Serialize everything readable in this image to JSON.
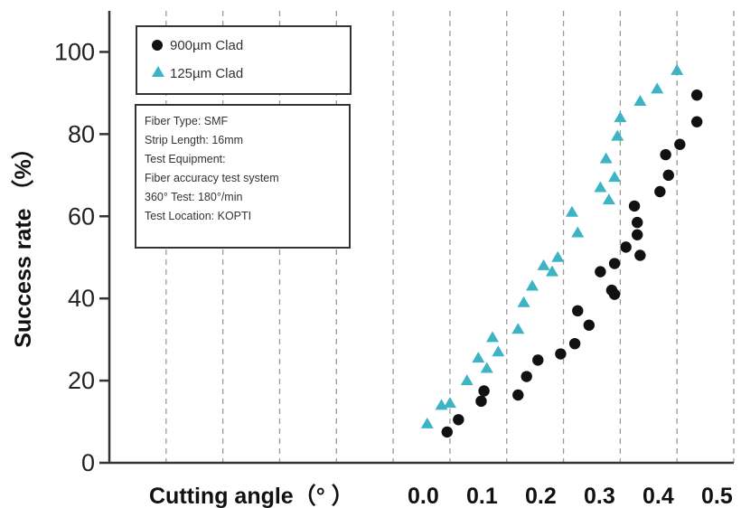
{
  "chart_data": {
    "type": "scatter",
    "xlabel": "Cutting angle（° ）",
    "ylabel": "Success rate （%）",
    "x_ticks": [
      "0.0",
      "0.1",
      "0.2",
      "0.3",
      "0.4",
      "0.5"
    ],
    "y_ticks": [
      "0",
      "20",
      "40",
      "60",
      "80",
      "100"
    ],
    "xlim": [
      -0.6,
      0.5
    ],
    "ylim": [
      0,
      110
    ],
    "grid": "vertical-dashed",
    "legend_position": "top-left",
    "colors": {
      "900um": "#111111",
      "125um": "#3cb4c4"
    },
    "series": [
      {
        "name": "900µm Clad",
        "marker": "circle",
        "points": [
          [
            -0.005,
            7.5
          ],
          [
            0.015,
            10.5
          ],
          [
            0.055,
            15
          ],
          [
            0.06,
            17.5
          ],
          [
            0.12,
            16.5
          ],
          [
            0.135,
            21
          ],
          [
            0.155,
            25
          ],
          [
            0.195,
            26.5
          ],
          [
            0.22,
            29
          ],
          [
            0.225,
            37
          ],
          [
            0.245,
            33.5
          ],
          [
            0.265,
            46.5
          ],
          [
            0.285,
            42
          ],
          [
            0.29,
            41
          ],
          [
            0.29,
            48.5
          ],
          [
            0.31,
            52.5
          ],
          [
            0.325,
            62.5
          ],
          [
            0.33,
            55.5
          ],
          [
            0.33,
            58.5
          ],
          [
            0.335,
            50.5
          ],
          [
            0.37,
            66
          ],
          [
            0.38,
            75
          ],
          [
            0.385,
            70
          ],
          [
            0.405,
            77.5
          ],
          [
            0.435,
            89.5
          ],
          [
            0.435,
            83
          ]
        ]
      },
      {
        "name": "125µm Clad",
        "marker": "triangle",
        "points": [
          [
            -0.04,
            9.5
          ],
          [
            -0.015,
            14
          ],
          [
            0.0,
            14.5
          ],
          [
            0.03,
            20
          ],
          [
            0.05,
            25.5
          ],
          [
            0.065,
            23
          ],
          [
            0.075,
            30.5
          ],
          [
            0.085,
            27
          ],
          [
            0.12,
            32.5
          ],
          [
            0.13,
            39
          ],
          [
            0.145,
            43
          ],
          [
            0.165,
            48
          ],
          [
            0.18,
            46.5
          ],
          [
            0.19,
            50
          ],
          [
            0.215,
            61
          ],
          [
            0.225,
            56
          ],
          [
            0.265,
            67
          ],
          [
            0.275,
            74
          ],
          [
            0.28,
            64
          ],
          [
            0.29,
            69.5
          ],
          [
            0.295,
            79.5
          ],
          [
            0.3,
            84
          ],
          [
            0.335,
            88
          ],
          [
            0.365,
            91
          ],
          [
            0.4,
            95.5
          ]
        ]
      }
    ],
    "info_box": [
      "Fiber Type: SMF",
      "Strip Length: 16mm",
      "Test Equipment:",
      "Fiber accuracy test system",
      "360° Test: 180°/min",
      "Test Location: KOPTI"
    ]
  }
}
